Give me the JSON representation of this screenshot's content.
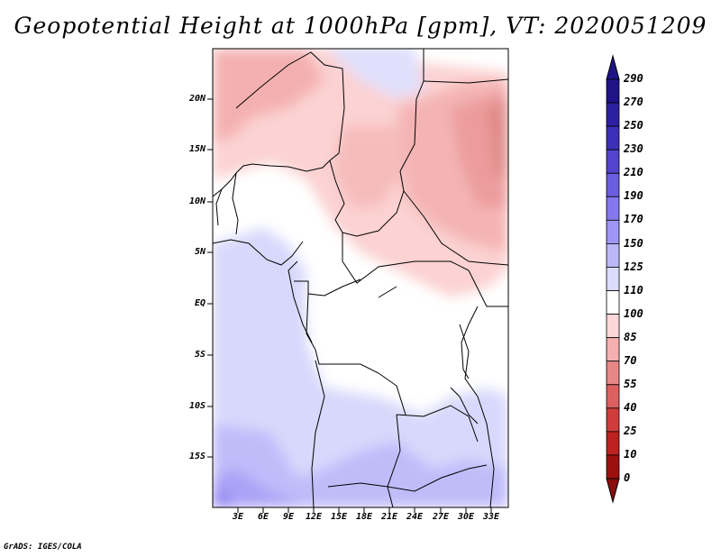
{
  "title": "Geopotential Height at 1000hPa [gpm], VT: 2020051209",
  "footer": "GrADS: IGES/COLA",
  "map": {
    "lat_labels": [
      "20N",
      "15N",
      "10N",
      "5N",
      "EQ",
      "5S",
      "10S",
      "15S"
    ],
    "lon_labels": [
      "3E",
      "6E",
      "9E",
      "12E",
      "15E",
      "18E",
      "21E",
      "24E",
      "27E",
      "30E",
      "33E"
    ]
  },
  "colorbar": {
    "labels": [
      "290",
      "270",
      "250",
      "230",
      "210",
      "190",
      "170",
      "150",
      "125",
      "110",
      "100",
      "85",
      "70",
      "55",
      "40",
      "25",
      "10",
      "0"
    ],
    "colors": [
      "#1e1486",
      "#2c20a0",
      "#3c30b8",
      "#5244cc",
      "#6a5ee0",
      "#8478ec",
      "#9e96f2",
      "#bcb8f8",
      "#dcdcfc",
      "#ffffff",
      "#fcd8d8",
      "#f4b0b0",
      "#e68888",
      "#dc6060",
      "#d03c3c",
      "#bc2020",
      "#9c1010"
    ]
  }
}
